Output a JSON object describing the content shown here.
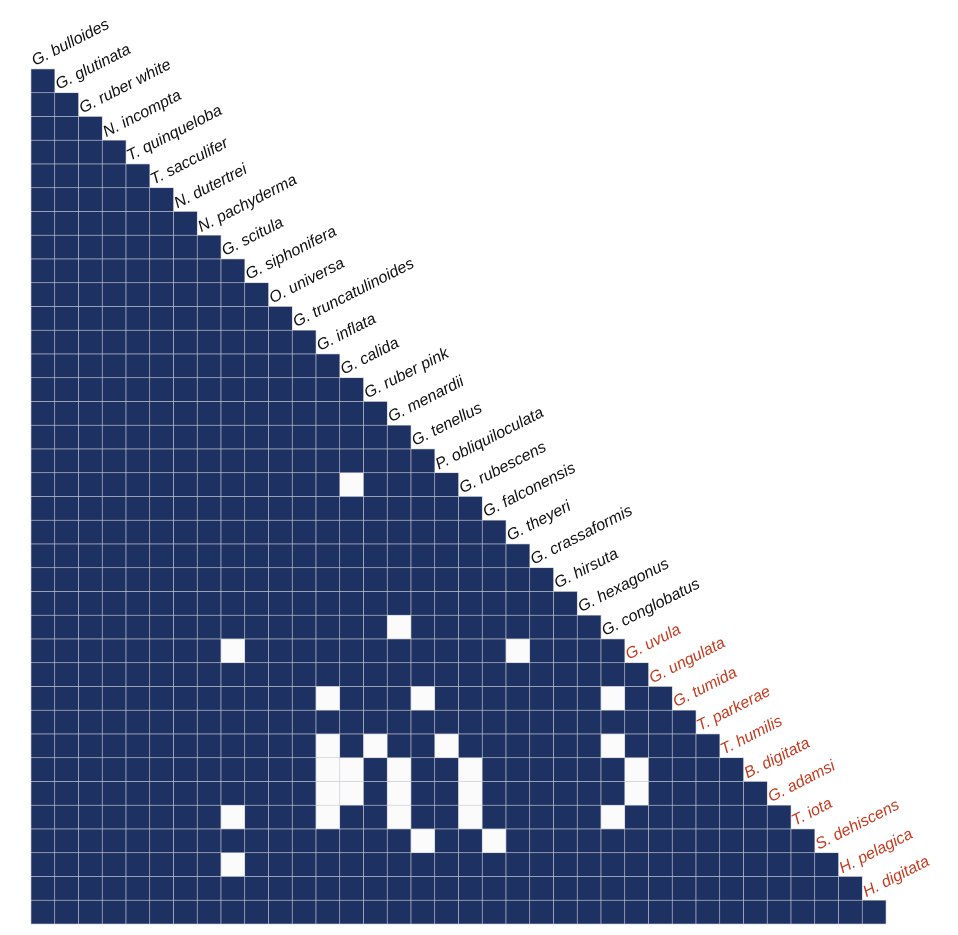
{
  "chart_data": {
    "type": "heatmap",
    "title": "",
    "xlabel": "",
    "ylabel": "",
    "grid": true,
    "legend": "none",
    "colors": {
      "filled": "#1e3163",
      "empty": "#fbfbfb",
      "grid": "#c8cbd4",
      "label_default": "#111111",
      "label_highlight": "#c43a1f"
    },
    "species": [
      "G. bulloides",
      "G. glutinata",
      "G. ruber white",
      "N. incompta",
      "T. quinqueloba",
      "T. sacculifer",
      "N. dutertrei",
      "N. pachyderma",
      "G. scitula",
      "G. siphonifera",
      "O. universa",
      "G. truncatulinoides",
      "G. inflata",
      "G. calida",
      "G. ruber pink",
      "G. menardii",
      "G. tenellus",
      "P. obliquiloculata",
      "G. rubescens",
      "G. falconensis",
      "G. theyeri",
      "G. crassaformis",
      "G. hirsuta",
      "G. hexagonus",
      "G. conglobatus",
      "G. uvula",
      "G. ungulata",
      "G. tumida",
      "T. parkerae",
      "T. humilis",
      "B. digitata",
      "G. adamsi",
      "T. iota",
      "S. dehiscens",
      "H. pelagica",
      "H. digitata"
    ],
    "highlighted_from_index": 25,
    "rows": [
      "1",
      "11",
      "111",
      "1111",
      "11111",
      "111111",
      "1111111",
      "11111111",
      "111111111",
      "1111111111",
      "11111111111",
      "111111111111",
      "1111111111111",
      "11111111111111",
      "111111111111111",
      "1111111111111111",
      "11111111111111111",
      "111111111111101111",
      "1111111111111111111",
      "11111111111111111111",
      "111111111111111111111",
      "1111111111111111111111",
      "11111111111111111111111",
      "111111111111111011111111",
      "1111111101111111111101111",
      "11111111111111111111111111",
      "111111111111011101111111011",
      "1111111111111111111111111111",
      "11111111111101011011111101111",
      "111111111111001011011111101111",
      "1111111111110010110111111011111",
      "11111111011101101101111101111111",
      "111111111111111101101111111111111",
      "1111111101111111111111111111111111",
      "11111111111111111111111111111111111",
      "111111111111111111111111111111111111"
    ]
  }
}
